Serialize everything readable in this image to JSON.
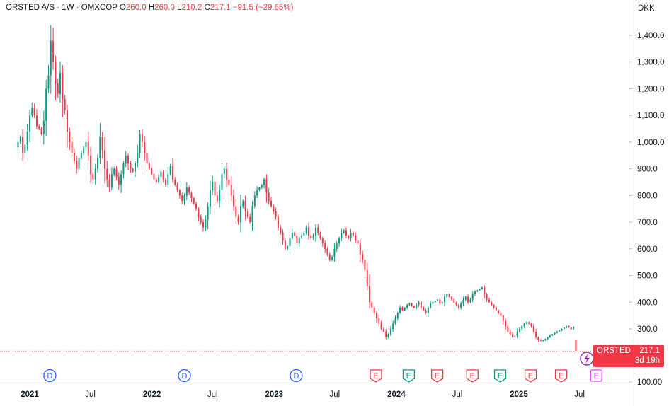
{
  "legend": {
    "symbol": "ORSTED A/S",
    "interval": "1W",
    "exchange": "OMXCOP",
    "open_label": "O",
    "open": "260.0",
    "high_label": "H",
    "high": "260.0",
    "low_label": "L",
    "low": "210.2",
    "close_label": "C",
    "close": "217.1",
    "change": "−91.5 (−29.65%)"
  },
  "axis": {
    "currency": "DKK",
    "y_ticks": [
      "1,400.0",
      "1,300.0",
      "1,200.0",
      "1,100.0",
      "1,000.0",
      "900.0",
      "800.0",
      "700.0",
      "600.0",
      "500.0",
      "400.0",
      "300.0",
      "100.00"
    ],
    "x_ticks": [
      {
        "label": "2021",
        "bold": true,
        "date": "2021-01-01"
      },
      {
        "label": "Jul",
        "bold": false,
        "date": "2021-07-01"
      },
      {
        "label": "2022",
        "bold": true,
        "date": "2022-01-01"
      },
      {
        "label": "Jul",
        "bold": false,
        "date": "2022-07-01"
      },
      {
        "label": "2023",
        "bold": true,
        "date": "2023-01-01"
      },
      {
        "label": "Jul",
        "bold": false,
        "date": "2023-07-01"
      },
      {
        "label": "2024",
        "bold": true,
        "date": "2024-01-01"
      },
      {
        "label": "Jul",
        "bold": false,
        "date": "2024-07-01"
      },
      {
        "label": "2025",
        "bold": true,
        "date": "2025-01-01"
      },
      {
        "label": "Jul",
        "bold": false,
        "date": "2025-07-01"
      }
    ]
  },
  "price_label": {
    "symbol": "ORSTED",
    "price": "217.1",
    "countdown": "3d 19h"
  },
  "events": [
    {
      "letter": "D",
      "kind": "dividend",
      "date": "2021-03-02",
      "color": "#2962ff"
    },
    {
      "letter": "D",
      "kind": "dividend",
      "date": "2022-04-08",
      "color": "#2962ff"
    },
    {
      "letter": "D",
      "kind": "dividend",
      "date": "2023-03-08",
      "color": "#2962ff"
    },
    {
      "letter": "E",
      "kind": "earnings-miss",
      "date": "2023-11-01",
      "color": "#f23645"
    },
    {
      "letter": "E",
      "kind": "earnings-beat",
      "date": "2024-02-07",
      "color": "#089981"
    },
    {
      "letter": "E",
      "kind": "earnings-miss",
      "date": "2024-05-02",
      "color": "#f23645"
    },
    {
      "letter": "E",
      "kind": "earnings-miss",
      "date": "2024-08-15",
      "color": "#f23645"
    },
    {
      "letter": "E",
      "kind": "earnings-beat",
      "date": "2024-11-06",
      "color": "#089981"
    },
    {
      "letter": "E",
      "kind": "earnings-miss",
      "date": "2025-02-05",
      "color": "#f23645"
    },
    {
      "letter": "E",
      "kind": "earnings-miss",
      "date": "2025-05-07",
      "color": "#f23645"
    },
    {
      "letter": "E",
      "kind": "earnings-upcoming",
      "date": "2025-08-20",
      "color": "#e040fb"
    }
  ],
  "colors": {
    "up": "#089981",
    "down": "#f23645",
    "grid": "#f0f3fa",
    "axis_line": "#e0e3eb"
  },
  "chart_data": {
    "type": "candlestick",
    "title": "ORSTED A/S · 1W · OMXCOP",
    "ylabel": "DKK",
    "ylim": [
      90,
      1490
    ],
    "y_scale": "linear",
    "grid": false,
    "x_start": "2020-11-27",
    "interval_days": 7,
    "closes": [
      1000,
      1020,
      960,
      990,
      1040,
      1100,
      1130,
      1100,
      1060,
      1050,
      1030,
      1080,
      1200,
      1250,
      1380,
      1300,
      1220,
      1180,
      1260,
      1160,
      1120,
      1040,
      1000,
      960,
      930,
      900,
      940,
      960,
      980,
      1000,
      950,
      880,
      860,
      900,
      940,
      1020,
      970,
      900,
      860,
      830,
      880,
      900,
      870,
      840,
      880,
      920,
      950,
      920,
      900,
      890,
      920,
      960,
      1030,
      1000,
      960,
      920,
      900,
      880,
      860,
      850,
      870,
      890,
      860,
      840,
      880,
      910,
      860,
      840,
      820,
      800,
      780,
      800,
      830,
      810,
      790,
      770,
      750,
      720,
      700,
      680,
      710,
      760,
      820,
      850,
      800,
      780,
      820,
      880,
      900,
      860,
      840,
      800,
      760,
      720,
      700,
      760,
      780,
      740,
      720,
      700,
      760,
      800,
      820,
      830,
      840,
      860,
      810,
      780,
      760,
      740,
      720,
      680,
      660,
      630,
      600,
      610,
      640,
      660,
      650,
      620,
      640,
      650,
      660,
      680,
      650,
      640,
      650,
      680,
      660,
      640,
      620,
      600,
      580,
      560,
      570,
      600,
      620,
      640,
      660,
      670,
      650,
      640,
      660,
      650,
      630,
      620,
      580,
      560,
      520,
      460,
      400,
      380,
      360,
      340,
      320,
      300,
      290,
      270,
      280,
      300,
      320,
      340,
      360,
      380,
      370,
      380,
      390,
      395,
      385,
      380,
      390,
      400,
      380,
      370,
      360,
      380,
      395,
      400,
      405,
      410,
      395,
      400,
      420,
      430,
      420,
      410,
      400,
      390,
      380,
      395,
      410,
      420,
      400,
      410,
      430,
      440,
      445,
      450,
      455,
      430,
      410,
      400,
      390,
      380,
      370,
      360,
      350,
      330,
      310,
      290,
      280,
      270,
      275,
      290,
      300,
      310,
      320,
      325,
      320,
      310,
      290,
      270,
      260,
      255,
      258,
      262,
      268,
      275,
      280,
      285,
      290,
      295,
      300,
      305,
      310,
      305,
      300,
      308,
      217.1
    ],
    "last": {
      "open": 260.0,
      "high": 260.0,
      "low": 210.2,
      "close": 217.1,
      "change": -91.5,
      "change_pct": -29.65
    }
  }
}
